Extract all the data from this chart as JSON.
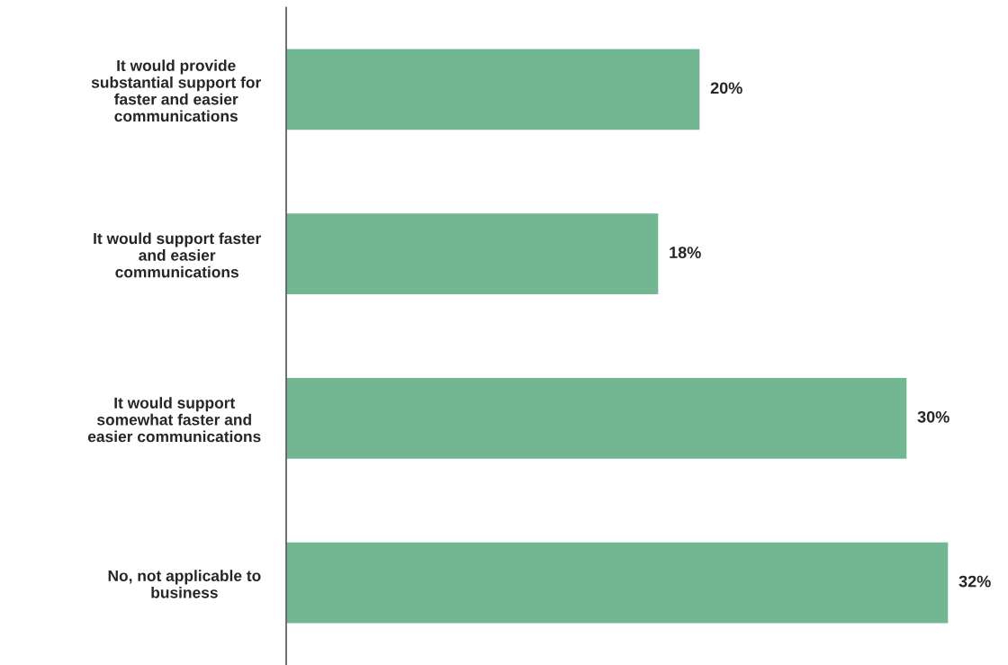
{
  "chart_data": {
    "type": "bar",
    "orientation": "horizontal",
    "categories": [
      "It would provide\nsubstantial support for\nfaster and easier\ncommunications",
      "It would support faster\nand easier\ncommunications",
      "It would support\nsomewhat faster and\neasier communications",
      "No, not applicable to\nbusiness"
    ],
    "values": [
      20,
      18,
      30,
      32
    ],
    "value_labels": [
      "20%",
      "18%",
      "30%",
      "32%"
    ],
    "color": "#73b692",
    "grid": false,
    "legend": false
  }
}
